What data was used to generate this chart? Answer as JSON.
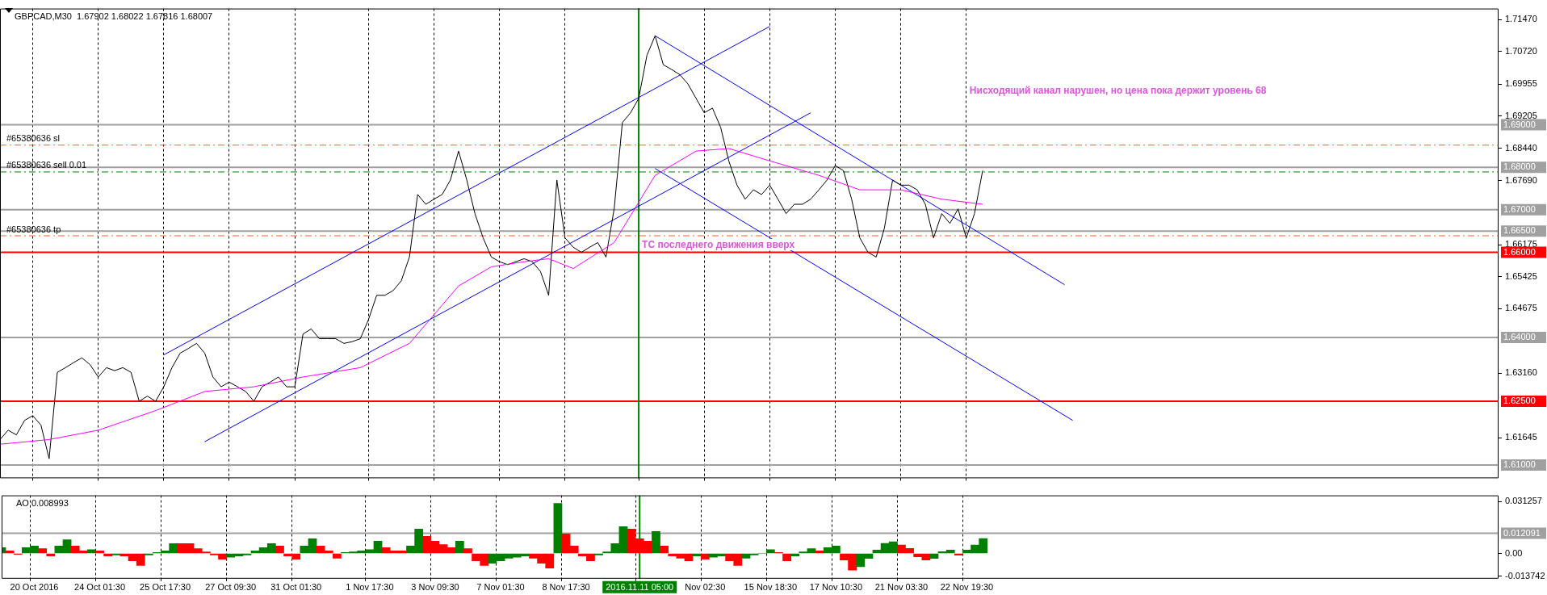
{
  "chart_data": [
    {
      "type": "line",
      "title": "GBPCAD,M30  1.67902 1.68022 1.67816 1.68007",
      "annotations": [
        "Нисходящий канал нарушен, но цена пока держит уровень 68",
        {
          "text": "ТС последнего движения вверх",
          "x": "2016.11.11 05:00",
          "y": 1.6605
        }
      ],
      "categories": [
        null,
        null,
        null,
        null,
        "20 Oct 2016",
        null,
        null,
        null,
        null,
        null,
        null,
        null,
        "24 Oct 01:30",
        null,
        null,
        null,
        null,
        null,
        null,
        null,
        "25 Oct 17:30",
        null,
        null,
        null,
        null,
        null,
        null,
        null,
        "27 Oct 09:30",
        null,
        null,
        null,
        null,
        null,
        null,
        null,
        "31 Oct 01:30",
        null,
        null,
        null,
        null,
        null,
        null,
        null,
        null,
        "1 Nov 17:30",
        null,
        null,
        null,
        null,
        null,
        null,
        null,
        "3 Nov 09:30",
        null,
        null,
        null,
        null,
        null,
        null,
        null,
        "7 Nov 01:30",
        null,
        null,
        null,
        null,
        null,
        null,
        null,
        "8 Nov 17:30",
        null,
        null,
        null,
        null,
        null,
        null,
        null,
        null,
        "2016.11.11 05:00",
        null,
        null,
        null,
        null,
        null,
        null,
        null,
        "Nov 02:30",
        null,
        null,
        null,
        null,
        null,
        null,
        null,
        "15 Nov 18:30",
        null,
        null,
        null,
        null,
        null,
        null,
        null,
        "17 Nov 10:30",
        null,
        null,
        null,
        null,
        null,
        null,
        null,
        "21 Nov 03:30",
        null,
        null,
        null,
        null,
        null,
        null,
        null,
        "22 Nov 19:30",
        null,
        null,
        null,
        null,
        null,
        null,
        null,
        null,
        null,
        null,
        null,
        null,
        null,
        null,
        null,
        null,
        null,
        null,
        null,
        null,
        null,
        null,
        null,
        null,
        null,
        null,
        null,
        null,
        null,
        null,
        null,
        null,
        null,
        null,
        null,
        null,
        null,
        null,
        null,
        null,
        null,
        null,
        null,
        null,
        null,
        null,
        null,
        null,
        null,
        null,
        null,
        null,
        null,
        null,
        null,
        null,
        null,
        null,
        null,
        null,
        null,
        null,
        null,
        null,
        null
      ],
      "series": [
        {
          "color": "#ff00ff",
          "values": [
            1.6149,
            null,
            null,
            null,
            null,
            null,
            1.616,
            null,
            null,
            null,
            null,
            null,
            1.6182,
            null,
            null,
            null,
            null,
            null,
            null,
            1.6228,
            null,
            null,
            null,
            null,
            null,
            1.6273,
            null,
            null,
            null,
            null,
            null,
            1.6284,
            null,
            null,
            null,
            null,
            null,
            1.6307,
            null,
            null,
            null,
            null,
            null,
            null,
            1.6329,
            null,
            null,
            null,
            null,
            null,
            1.6386,
            null,
            null,
            null,
            null,
            null,
            1.6521,
            null,
            null,
            null,
            1.6566,
            null,
            null,
            null,
            1.6578,
            null,
            null,
            1.6585,
            null,
            null,
            1.6562,
            null,
            null,
            null,
            null,
            1.6623,
            null,
            null,
            null,
            null,
            1.6781,
            null,
            null,
            null,
            null,
            1.6838,
            null,
            null,
            null,
            1.6844,
            null,
            null,
            null,
            null,
            1.6815,
            null,
            null,
            null,
            null,
            null,
            1.6781,
            null,
            null,
            null,
            null,
            1.6747,
            null,
            null,
            null,
            null,
            1.6747,
            null,
            null,
            null,
            null,
            1.6725,
            null,
            null,
            null,
            null,
            1.6713,
            null,
            null,
            null,
            null,
            null,
            null,
            null,
            null,
            null,
            null,
            null,
            null,
            null,
            null,
            null,
            null,
            null,
            null,
            null,
            null,
            null,
            null,
            null,
            null,
            null,
            null,
            null,
            null,
            null,
            null,
            null,
            null,
            null,
            null,
            null,
            null,
            null,
            null,
            null,
            null,
            null,
            null,
            null,
            null,
            null,
            null,
            null,
            null,
            null,
            null,
            null,
            null,
            null,
            null,
            null,
            null,
            null,
            null,
            null,
            null,
            null,
            null,
            null
          ]
        },
        {
          "color": "#000000",
          "values": [
            1.616,
            1.6182,
            1.6171,
            1.6205,
            1.6216,
            1.6194,
            1.6115,
            1.6318,
            1.6329,
            1.6341,
            1.6352,
            1.6336,
            1.6307,
            1.6329,
            1.6322,
            1.6329,
            1.6318,
            1.625,
            1.6262,
            1.625,
            1.6284,
            1.6329,
            1.6363,
            1.6374,
            1.6386,
            1.6363,
            1.6307,
            1.6284,
            1.6295,
            1.6284,
            1.6273,
            1.625,
            1.6284,
            1.6295,
            1.6307,
            1.6284,
            1.6284,
            1.6408,
            1.642,
            1.6397,
            1.6397,
            1.6397,
            1.6386,
            1.639,
            1.6397,
            1.6442,
            1.6499,
            1.6499,
            1.651,
            1.6533,
            1.6589,
            1.6736,
            1.6713,
            1.6725,
            1.6736,
            1.677,
            1.6838,
            1.677,
            1.6691,
            1.6634,
            1.6589,
            1.6578,
            1.6571,
            1.6578,
            1.6585,
            1.6578,
            1.6555,
            1.6499,
            1.677,
            1.6634,
            1.6612,
            1.66,
            1.6612,
            1.6623,
            1.6589,
            1.6702,
            1.6905,
            1.6928,
            1.6962,
            1.7063,
            1.7109,
            1.7041,
            1.703,
            1.7018,
            1.6996,
            1.6962,
            1.6928,
            1.6939,
            1.6894,
            1.6815,
            1.6758,
            1.6725,
            1.6747,
            1.6736,
            1.6758,
            1.6725,
            1.6691,
            1.6713,
            1.6713,
            1.6725,
            1.6747,
            1.677,
            1.6804,
            1.6792,
            1.6725,
            1.6634,
            1.66,
            1.6589,
            1.6657,
            1.677,
            1.6758,
            1.6758,
            1.6747,
            1.6713,
            1.6634,
            1.6691,
            1.6668,
            1.6702,
            1.6634,
            1.6691,
            1.6792,
            null,
            null,
            null,
            null,
            null,
            null,
            null,
            null,
            null,
            null,
            null,
            null,
            null,
            null,
            null,
            null,
            null,
            null,
            null,
            null,
            null,
            null,
            null,
            null,
            null,
            null,
            null,
            null,
            null,
            null,
            null,
            null,
            null,
            null,
            null,
            null,
            null,
            null,
            null,
            null,
            null,
            null,
            null,
            null,
            null,
            null,
            null,
            null,
            null,
            null,
            null,
            null,
            null,
            null,
            null,
            null,
            null,
            null,
            null,
            null,
            null,
            null,
            null
          ]
        },
        {
          "color": "#0000ff",
          "values": [
            null,
            null,
            null,
            null,
            null,
            null,
            null,
            null,
            null,
            null,
            null,
            null,
            null,
            null,
            null,
            null,
            null,
            null,
            null,
            null,
            1.6359,
            null,
            null,
            null,
            null,
            null,
            null,
            null,
            null,
            null,
            null,
            null,
            null,
            null,
            null,
            null,
            null,
            null,
            null,
            null,
            null,
            null,
            null,
            null,
            null,
            null,
            null,
            null,
            null,
            null,
            null,
            null,
            null,
            null,
            null,
            null,
            null,
            null,
            null,
            null,
            null,
            null,
            null,
            null,
            null,
            null,
            null,
            null,
            null,
            null,
            null,
            null,
            null,
            null,
            null,
            null,
            null,
            null,
            null,
            null,
            null,
            null,
            null,
            null,
            null,
            null,
            null,
            null,
            null,
            null,
            null,
            null,
            null,
            null,
            1.7131,
            null,
            null,
            null,
            null,
            null,
            null,
            null,
            null,
            null,
            null,
            null,
            null,
            null,
            null,
            null,
            null,
            null,
            null,
            null,
            null,
            null,
            null,
            null,
            null,
            null,
            null,
            null,
            null,
            null,
            null,
            null,
            null,
            null,
            null,
            null,
            null,
            null,
            null,
            null,
            null,
            null,
            null,
            null,
            null,
            null,
            null,
            null,
            null,
            null,
            null,
            null,
            null,
            null,
            null,
            null,
            null,
            null,
            null,
            null,
            null,
            null,
            null,
            null,
            null,
            null,
            null,
            null,
            null,
            null,
            null,
            null,
            null,
            null,
            null,
            null,
            null,
            null,
            null,
            null,
            null,
            null,
            null,
            null,
            null,
            null,
            null,
            null,
            null,
            null
          ]
        },
        {
          "color": "#0000ff",
          "values": [
            null,
            null,
            null,
            null,
            null,
            null,
            null,
            null,
            null,
            null,
            null,
            null,
            null,
            null,
            null,
            null,
            null,
            null,
            null,
            null,
            null,
            null,
            null,
            null,
            null,
            1.6155,
            null,
            null,
            null,
            null,
            null,
            null,
            null,
            null,
            null,
            null,
            null,
            null,
            null,
            null,
            null,
            null,
            null,
            null,
            null,
            null,
            null,
            null,
            null,
            null,
            null,
            null,
            null,
            null,
            null,
            null,
            null,
            null,
            null,
            null,
            null,
            null,
            null,
            null,
            null,
            null,
            null,
            null,
            null,
            null,
            null,
            null,
            null,
            null,
            null,
            null,
            null,
            null,
            null,
            null,
            null,
            null,
            null,
            null,
            null,
            null,
            null,
            null,
            null,
            null,
            null,
            null,
            null,
            null,
            null,
            null,
            null,
            null,
            null,
            1.6928,
            null,
            null,
            null,
            null,
            null,
            null,
            null,
            null,
            null,
            null,
            null,
            null,
            null,
            null,
            null,
            null,
            null,
            null,
            null,
            null,
            null,
            null,
            null,
            null,
            null,
            null,
            null,
            null,
            null,
            null,
            null,
            null,
            null,
            null,
            null,
            null,
            null,
            null,
            null,
            null,
            null,
            null,
            null,
            null,
            null,
            null,
            null,
            null,
            null,
            null,
            null,
            null,
            null,
            null,
            null,
            null,
            null,
            null,
            null,
            null,
            null,
            null,
            null,
            null,
            null,
            null,
            null,
            null,
            null,
            null,
            null,
            null,
            null,
            null,
            null,
            null,
            null,
            null,
            null,
            null,
            null,
            null,
            null,
            null
          ]
        },
        {
          "color": "#0000ff",
          "values": [
            null,
            null,
            null,
            null,
            null,
            null,
            null,
            null,
            null,
            null,
            null,
            null,
            null,
            null,
            null,
            null,
            null,
            null,
            null,
            null,
            null,
            null,
            null,
            null,
            null,
            null,
            null,
            null,
            null,
            null,
            null,
            null,
            null,
            null,
            null,
            null,
            null,
            null,
            null,
            null,
            null,
            null,
            null,
            null,
            null,
            null,
            null,
            null,
            null,
            null,
            null,
            null,
            null,
            null,
            null,
            null,
            null,
            null,
            null,
            null,
            null,
            null,
            null,
            null,
            null,
            null,
            null,
            null,
            null,
            null,
            null,
            null,
            null,
            null,
            null,
            null,
            null,
            null,
            null,
            null,
            1.7109,
            null,
            null,
            null,
            null,
            null,
            null,
            null,
            null,
            null,
            null,
            null,
            null,
            null,
            null,
            null,
            null,
            null,
            null,
            null,
            null,
            null,
            null,
            null,
            null,
            null,
            null,
            null,
            null,
            null,
            null,
            null,
            null,
            null,
            null,
            null,
            null,
            null,
            null,
            null,
            null,
            null,
            null,
            null,
            null,
            null,
            null,
            null,
            null,
            null,
            1.6524,
            null,
            null,
            null,
            null,
            null,
            null,
            null,
            null,
            null,
            null,
            null,
            null,
            null,
            null,
            null,
            null,
            null,
            null,
            null,
            null,
            null,
            null,
            null,
            null,
            null,
            null,
            null,
            null,
            null,
            null,
            null,
            null,
            null,
            null,
            null,
            null,
            null,
            null,
            null,
            null,
            null,
            null,
            null,
            null,
            null,
            null,
            null,
            null,
            null,
            null,
            null,
            null,
            null
          ]
        },
        {
          "color": "#0000ff",
          "values": [
            null,
            null,
            null,
            null,
            null,
            null,
            null,
            null,
            null,
            null,
            null,
            null,
            null,
            null,
            null,
            null,
            null,
            null,
            null,
            null,
            null,
            null,
            null,
            null,
            null,
            null,
            null,
            null,
            null,
            null,
            null,
            null,
            null,
            null,
            null,
            null,
            null,
            null,
            null,
            null,
            null,
            null,
            null,
            null,
            null,
            null,
            null,
            null,
            null,
            null,
            null,
            null,
            null,
            null,
            null,
            null,
            null,
            null,
            null,
            null,
            null,
            null,
            null,
            null,
            null,
            null,
            null,
            null,
            null,
            null,
            null,
            null,
            null,
            null,
            null,
            null,
            null,
            null,
            null,
            null,
            1.6797,
            null,
            null,
            null,
            null,
            null,
            null,
            null,
            null,
            null,
            null,
            null,
            null,
            null,
            null,
            null,
            null,
            null,
            null,
            null,
            null,
            null,
            null,
            null,
            null,
            null,
            null,
            null,
            null,
            null,
            null,
            null,
            null,
            null,
            null,
            null,
            null,
            null,
            null,
            null,
            null,
            null,
            null,
            null,
            null,
            null,
            null,
            null,
            null,
            null,
            null,
            1.6205,
            null,
            null,
            null,
            null,
            null,
            null,
            null,
            null,
            null,
            null,
            null,
            null,
            null,
            null,
            null,
            null,
            null,
            null,
            null,
            null,
            null,
            null,
            null,
            null,
            null,
            null,
            null,
            null,
            null,
            null,
            null,
            null,
            null,
            null,
            null,
            null,
            null,
            null,
            null,
            null,
            null,
            null,
            null,
            null,
            null,
            null,
            null,
            null,
            null,
            null,
            null,
            null
          ]
        }
      ],
      "ylim": [
        1.6069,
        1.7173
      ],
      "yticks": [
        {
          "value": 1.7147,
          "label": "1.71470"
        },
        {
          "value": 1.7072,
          "label": "1.70720"
        },
        1.69955,
        1.69205,
        {
          "value": 1.6844,
          "label": "1.68440"
        },
        {
          "value": 1.6769,
          "label": "1.67690"
        },
        1.66175,
        1.65425,
        1.64675,
        {
          "value": 1.6316,
          "label": "1.63160"
        },
        1.61645
      ],
      "ref_lines": [
        {
          "axis": "y",
          "value": 1.69,
          "label": "1.69000",
          "color": "#a0a0a0"
        },
        {
          "axis": "y",
          "value": 1.68,
          "label": "1.68000",
          "color": "#a0a0a0"
        },
        {
          "axis": "y",
          "value": 1.67,
          "label": "1.67000",
          "color": "#a0a0a0"
        },
        {
          "axis": "y",
          "value": 1.665,
          "label": "1.66500",
          "color": "#a0a0a0"
        },
        {
          "axis": "y",
          "value": 1.66,
          "label": "1.66000",
          "color": "#ff0000"
        },
        {
          "axis": "y",
          "value": 1.64,
          "label": "1.64000",
          "color": "#a0a0a0"
        },
        {
          "axis": "y",
          "value": 1.625,
          "label": "1.62500",
          "color": "#ff0000"
        },
        {
          "axis": "y",
          "value": 1.61,
          "label": "1.61000",
          "color": "#a0a0a0"
        },
        {
          "axis": "y",
          "value": 1.6852,
          "label": "#65380636 sl",
          "color": "#ff6020",
          "line_style": "dashed"
        },
        {
          "axis": "y",
          "value": 1.6789,
          "label": "#65380636 sell 0.01",
          "color": "#008000",
          "line_style": "dashed"
        },
        {
          "axis": "y",
          "value": 1.6639,
          "label": "#65380636 tp",
          "color": "#ff6020",
          "line_style": "dashed"
        },
        {
          "axis": "x",
          "value": "2016.11.11 05:00",
          "color": "#008000"
        }
      ],
      "grid": "x",
      "legend": false,
      "tick_labels": "y",
      "marker": "none"
    },
    {
      "type": "bar",
      "title": "AO 0.008993",
      "categories": [
        null,
        null,
        null,
        null,
        "20 Oct 2016",
        null,
        null,
        null,
        null,
        null,
        null,
        null,
        "24 Oct 01:30",
        null,
        null,
        null,
        null,
        null,
        null,
        null,
        "25 Oct 17:30",
        null,
        null,
        null,
        null,
        null,
        null,
        null,
        "27 Oct 09:30",
        null,
        null,
        null,
        null,
        null,
        null,
        null,
        "31 Oct 01:30",
        null,
        null,
        null,
        null,
        null,
        null,
        null,
        null,
        "1 Nov 17:30",
        null,
        null,
        null,
        null,
        null,
        null,
        null,
        "3 Nov 09:30",
        null,
        null,
        null,
        null,
        null,
        null,
        null,
        "7 Nov 01:30",
        null,
        null,
        null,
        null,
        null,
        null,
        null,
        "8 Nov 17:30",
        null,
        null,
        null,
        null,
        null,
        null,
        null,
        null,
        "2016.11.11 05:00",
        null,
        null,
        null,
        null,
        null,
        null,
        null,
        "Nov 02:30",
        null,
        null,
        null,
        null,
        null,
        null,
        null,
        "15 Nov 18:30",
        null,
        null,
        null,
        null,
        null,
        null,
        null,
        "17 Nov 10:30",
        null,
        null,
        null,
        null,
        null,
        null,
        null,
        "21 Nov 03:30",
        null,
        null,
        null,
        null,
        null,
        null,
        null,
        "22 Nov 19:30",
        null,
        null,
        null,
        null,
        null,
        null,
        null,
        null,
        null,
        null,
        null,
        null,
        null,
        null,
        null,
        null,
        null,
        null,
        null,
        null,
        null,
        null,
        null,
        null,
        null,
        null,
        null,
        null,
        null,
        null,
        null,
        null,
        null,
        null,
        null,
        null,
        null,
        null,
        null,
        null,
        null,
        null,
        null,
        null,
        null,
        null,
        null,
        null,
        null,
        null,
        null,
        null,
        null,
        null,
        null,
        null,
        null,
        null,
        null,
        null,
        null,
        null,
        null,
        null,
        null
      ],
      "values": [
        0.0035,
        0.0015,
        -0.0006,
        0.0035,
        0.0044,
        0.0029,
        -0.0015,
        0.0044,
        0.0082,
        0.0044,
        0.0015,
        0.0023,
        0.0015,
        -0.0015,
        -0.0009,
        -0.0015,
        -0.0044,
        -0.0073,
        -0.0009,
        0.0006,
        0.0015,
        0.0059,
        0.0059,
        0.0059,
        0.0029,
        0.0009,
        -0.0009,
        -0.0035,
        -0.0023,
        -0.0015,
        -0.0009,
        0.0015,
        0.0035,
        0.0059,
        0.0044,
        -0.0015,
        -0.0035,
        0.0044,
        0.0088,
        0.0044,
        0.0015,
        -0.0029,
        0.0006,
        0.0009,
        0.0015,
        0.0023,
        0.0073,
        0.0035,
        0.0015,
        0.0015,
        0.0044,
        0.0147,
        0.0103,
        0.0073,
        0.0053,
        0.0035,
        0.0073,
        0.0029,
        -0.0044,
        -0.0073,
        -0.0059,
        -0.0044,
        -0.0029,
        -0.0023,
        -0.0015,
        -0.0029,
        -0.0059,
        -0.0088,
        0.03,
        0.0117,
        0.0044,
        -0.0015,
        -0.0044,
        -0.0009,
        0.0009,
        0.0059,
        0.0161,
        0.0147,
        0.0088,
        0.0073,
        0.0132,
        0.0044,
        -0.0015,
        -0.0029,
        -0.0044,
        -0.0015,
        -0.0035,
        -0.0023,
        -0.0015,
        -0.0044,
        -0.0073,
        -0.0029,
        -0.0009,
        0,
        0.0023,
        0.0006,
        -0.0044,
        -0.0015,
        0.0009,
        0.0029,
        0.0015,
        0.0035,
        0.0044,
        -0.004,
        -0.01,
        -0.008,
        -0.003,
        0.002,
        0.006,
        0.007,
        0.005,
        0.003,
        -0.002,
        -0.004,
        -0.003,
        0.001,
        0.002,
        -0.001,
        0.002,
        0.005,
        0.008993,
        null,
        null,
        null,
        null,
        null,
        null,
        null,
        null,
        null,
        null,
        null,
        null,
        null,
        null,
        null,
        null,
        null,
        null,
        null,
        null,
        null,
        null,
        null,
        null,
        null,
        null,
        null,
        null,
        null,
        null,
        null,
        null,
        null,
        null,
        null,
        null,
        null,
        null,
        null,
        null,
        null,
        null,
        null,
        null,
        null,
        null,
        null,
        null,
        null,
        null,
        null,
        null,
        null,
        null,
        null,
        null,
        null,
        null,
        null,
        null,
        null,
        null,
        null
      ],
      "colors": [
        "#008000",
        "#ff0000",
        "#ff0000",
        "#008000",
        "#008000",
        "#ff0000",
        "#ff0000",
        "#008000",
        "#008000",
        "#ff0000",
        "#ff0000",
        "#008000",
        "#ff0000",
        "#ff0000",
        "#008000",
        "#ff0000",
        "#ff0000",
        "#ff0000",
        "#008000",
        "#008000",
        "#008000",
        "#008000",
        "#ff0000",
        "#ff0000",
        "#ff0000",
        "#ff0000",
        "#ff0000",
        "#ff0000",
        "#008000",
        "#008000",
        "#008000",
        "#008000",
        "#008000",
        "#008000",
        "#ff0000",
        "#ff0000",
        "#ff0000",
        "#008000",
        "#008000",
        "#ff0000",
        "#ff0000",
        "#ff0000",
        "#008000",
        "#008000",
        "#008000",
        "#008000",
        "#008000",
        "#ff0000",
        "#ff0000",
        "#ff0000",
        "#008000",
        "#008000",
        "#ff0000",
        "#ff0000",
        "#ff0000",
        "#ff0000",
        "#008000",
        "#ff0000",
        "#ff0000",
        "#ff0000",
        "#008000",
        "#008000",
        "#008000",
        "#008000",
        "#008000",
        "#ff0000",
        "#ff0000",
        "#ff0000",
        "#008000",
        "#ff0000",
        "#ff0000",
        "#ff0000",
        "#ff0000",
        "#008000",
        "#008000",
        "#008000",
        "#008000",
        "#ff0000",
        "#ff0000",
        "#ff0000",
        "#008000",
        "#ff0000",
        "#ff0000",
        "#ff0000",
        "#ff0000",
        "#008000",
        "#ff0000",
        "#008000",
        "#008000",
        "#ff0000",
        "#ff0000",
        "#008000",
        "#008000",
        "#008000",
        "#008000",
        "#ff0000",
        "#ff0000",
        "#008000",
        "#008000",
        "#008000",
        "#ff0000",
        "#008000",
        "#008000",
        "#ff0000",
        "#ff0000",
        "#008000",
        "#008000",
        "#008000",
        "#008000",
        "#008000",
        "#ff0000",
        "#ff0000",
        "#ff0000",
        "#ff0000",
        "#008000",
        "#008000",
        "#008000",
        "#ff0000",
        "#008000",
        "#008000",
        "#008000",
        null,
        null,
        null,
        null,
        null,
        null,
        null,
        null,
        null,
        null,
        null,
        null,
        null,
        null,
        null,
        null,
        null,
        null,
        null,
        null,
        null,
        null,
        null,
        null,
        null,
        null,
        null,
        null,
        null,
        null,
        null,
        null,
        null,
        null,
        null,
        null,
        null,
        null,
        null,
        null,
        null,
        null,
        null,
        null,
        null,
        null,
        null,
        null,
        null,
        null,
        null,
        null,
        null,
        null,
        null,
        null,
        null,
        null,
        null,
        null,
        null,
        null,
        null
      ],
      "ylim": [
        -0.0152,
        0.0349
      ],
      "yticks": [
        0.031257,
        {
          "value": 0,
          "label": "0.00"
        },
        -0.013742
      ],
      "ref_lines": [
        {
          "axis": "y",
          "value": 0.012091,
          "label": "0.012091",
          "color": "#a0a0a0"
        },
        {
          "axis": "x",
          "value": "2016.11.11 05:00",
          "color": "#008000"
        }
      ],
      "grid": "x",
      "legend": false
    }
  ]
}
